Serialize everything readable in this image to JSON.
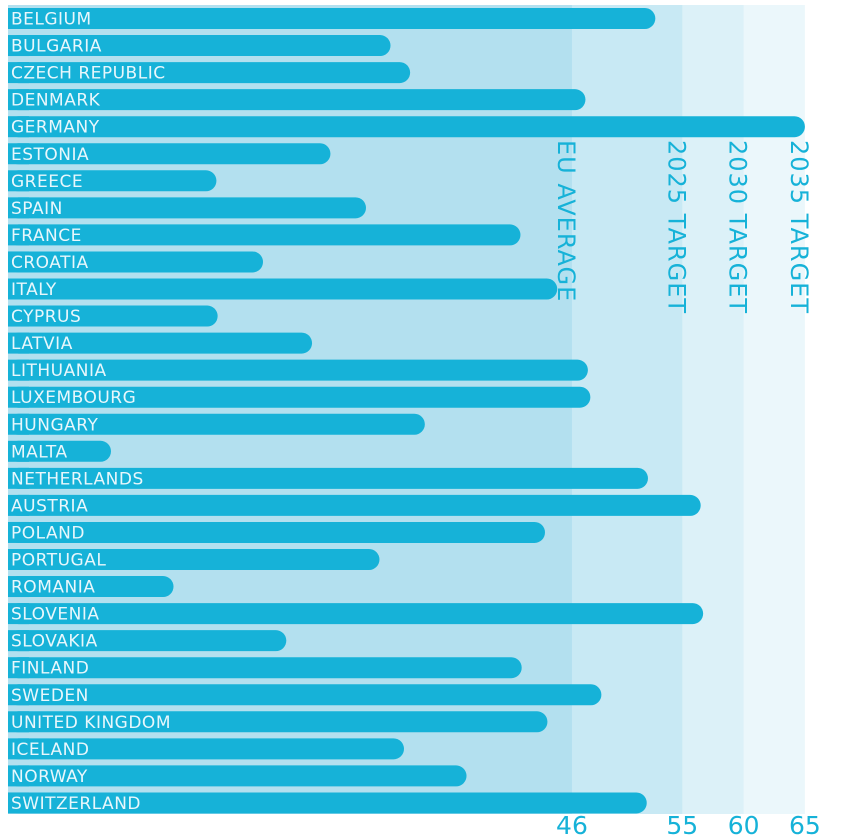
{
  "chart_data": {
    "type": "bar",
    "orientation": "horizontal",
    "categories": [
      "BELGIUM",
      "BULGARIA",
      "CZECH REPUBLIC",
      "DENMARK",
      "GERMANY",
      "ESTONIA",
      "GREECE",
      "SPAIN",
      "FRANCE",
      "CROATIA",
      "ITALY",
      "CYPRUS",
      "LATVIA",
      "LITHUANIA",
      "LUXEMBOURG",
      "HUNGARY",
      "MALTA",
      "NETHERLANDS",
      "AUSTRIA",
      "POLAND",
      "PORTUGAL",
      "ROMANIA",
      "SLOVENIA",
      "SLOVAKIA",
      "FINLAND",
      "SWEDEN",
      "UNITED KINGDOM",
      "ICELAND",
      "NORWAY",
      "SWITZERLAND"
    ],
    "values": [
      52.8,
      31.2,
      32.8,
      47.1,
      65.0,
      26.3,
      17.0,
      29.2,
      41.8,
      20.8,
      44.8,
      17.1,
      24.8,
      47.3,
      47.5,
      34.0,
      8.4,
      52.2,
      56.5,
      43.8,
      30.3,
      13.5,
      56.7,
      22.7,
      41.9,
      48.4,
      44.0,
      32.3,
      37.4,
      52.1
    ],
    "xlim": [
      0,
      66
    ],
    "ticks": [
      46,
      55,
      60,
      65
    ],
    "tick_labels": [
      "46",
      "55",
      "60",
      "65"
    ],
    "reference_bands": [
      {
        "label": "EU AVERAGE",
        "value": 46,
        "color": "#b3e0ef"
      },
      {
        "label": "2025 TARGET",
        "value": 55,
        "color": "#c8e9f4"
      },
      {
        "label": "2030 TARGET",
        "value": 60,
        "color": "#dcf1f8"
      },
      {
        "label": "2035 TARGET",
        "value": 65,
        "color": "#ebf7fb"
      }
    ],
    "bar_color": "#16b2d8",
    "grid": false,
    "legend": "none"
  }
}
